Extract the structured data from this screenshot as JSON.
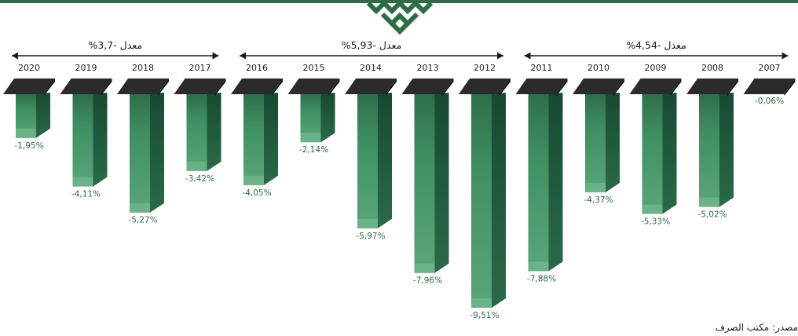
{
  "chart_data": {
    "type": "bar",
    "categories": [
      "2020",
      "2019",
      "2018",
      "2017",
      "2016",
      "2015",
      "2014",
      "2013",
      "2012",
      "2011",
      "2010",
      "2009",
      "2008",
      "2007"
    ],
    "values": [
      -1.95,
      -4.11,
      -5.27,
      -3.42,
      -4.05,
      -2.14,
      -5.97,
      -7.96,
      -9.51,
      -7.88,
      -4.37,
      -5.33,
      -5.02,
      -0.06
    ],
    "value_labels": [
      "-1,95%",
      "-4,11%",
      "-5,27%",
      "-3,42%",
      "-4,05%",
      "-2,14%",
      "-5,97%",
      "-7,96%",
      "-9,51%",
      "-7,88%",
      "-4,37%",
      "-5,33%",
      "-5,02%",
      "-0,06%"
    ],
    "ylim": [
      -9.51,
      0
    ],
    "averages": [
      {
        "label": "معدل -3,7%",
        "from": "2020",
        "to": "2017"
      },
      {
        "label": "معدل -5,93%",
        "from": "2016",
        "to": "2012"
      },
      {
        "label": "معدل -4,54%",
        "from": "2011",
        "to": "2007"
      }
    ],
    "colors": {
      "bar": "#3f8f63",
      "bar_dark": "#1f5a3c",
      "cap": "#2b2b2b",
      "label": "#2f6b46",
      "arrow": "#1a1a1a"
    }
  },
  "source": "مصدر: مكتب الصرف",
  "icons": {
    "ornament": "arabesque-ornament-icon"
  }
}
